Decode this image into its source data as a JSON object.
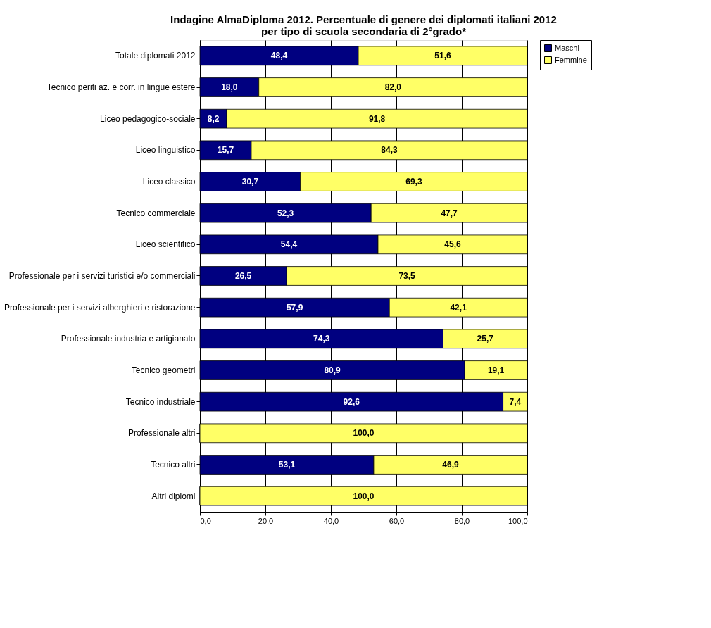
{
  "chart_data": {
    "type": "bar",
    "orientation": "horizontal",
    "stacked": true,
    "title": [
      "Indagine AlmaDiploma 2012. Percentuale di genere dei diplomati italiani 2012",
      "per tipo di scuola secondaria di 2°grado*"
    ],
    "categories": [
      "Totale diplomati 2012",
      "Tecnico periti az. e corr. in lingue estere",
      "Liceo pedagogico-sociale",
      "Liceo linguistico",
      "Liceo classico",
      "Tecnico commerciale",
      "Liceo scientifico",
      "Professionale per i servizi turistici e/o commerciali",
      "Professionale per i servizi alberghieri e ristorazione",
      "Professionale industria e artigianato",
      "Tecnico geometri",
      "Tecnico industriale",
      "Professionale altri",
      "Tecnico altri",
      "Altri diplomi"
    ],
    "series": [
      {
        "name": "Maschi",
        "color": "#000080",
        "values": [
          48.4,
          18.0,
          8.2,
          15.7,
          30.7,
          52.3,
          54.4,
          26.5,
          57.9,
          74.3,
          80.9,
          92.6,
          0,
          53.1,
          0
        ],
        "value_labels": [
          "48,4",
          "18,0",
          "8,2",
          "15,7",
          "30,7",
          "52,3",
          "54,4",
          "26,5",
          "57,9",
          "74,3",
          "80,9",
          "92,6",
          null,
          "53,1",
          null
        ]
      },
      {
        "name": "Femmine",
        "color": "#ffff66",
        "values": [
          51.6,
          82.0,
          91.8,
          84.3,
          69.3,
          47.7,
          45.6,
          73.5,
          42.1,
          25.7,
          19.1,
          7.4,
          100.0,
          46.9,
          100.0
        ],
        "value_labels": [
          "51,6",
          "82,0",
          "91,8",
          "84,3",
          "69,3",
          "47,7",
          "45,6",
          "73,5",
          "42,1",
          "25,7",
          "19,1",
          "7,4",
          "100,0",
          "46,9",
          "100,0"
        ]
      }
    ],
    "xlim": [
      0,
      100
    ],
    "xticks": [
      {
        "value": 0,
        "label": "0,0"
      },
      {
        "value": 20,
        "label": "20,0"
      },
      {
        "value": 40,
        "label": "40,0"
      },
      {
        "value": 60,
        "label": "60,0"
      },
      {
        "value": 80,
        "label": "80,0"
      },
      {
        "value": 100,
        "label": "100,0"
      }
    ],
    "grid": "x",
    "legend": "right"
  }
}
